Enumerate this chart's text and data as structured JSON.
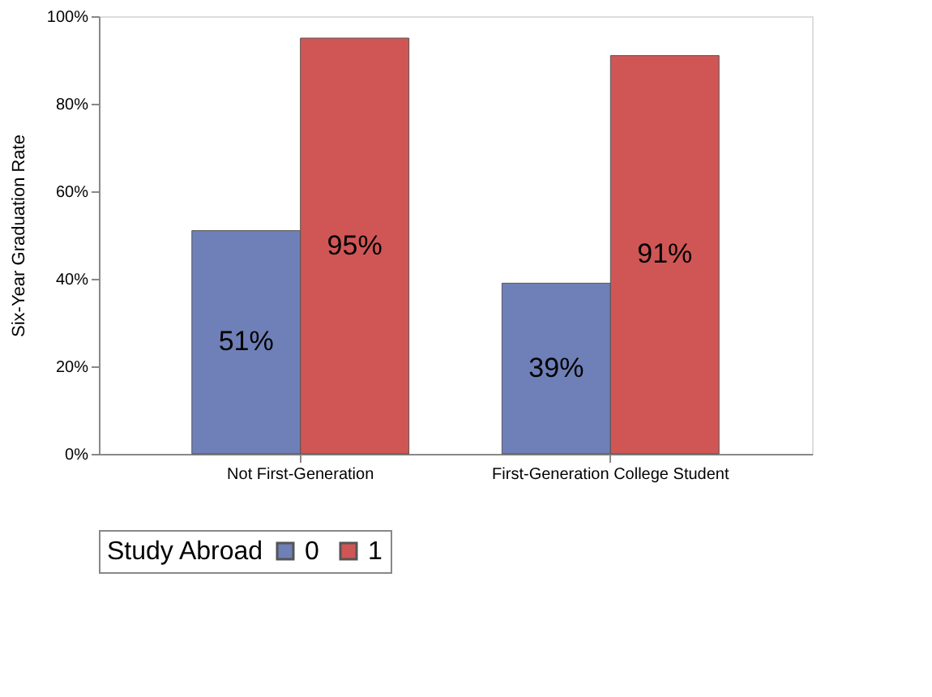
{
  "chart_data": {
    "type": "bar",
    "ylabel": "Six-Year Graduation Rate",
    "legend_title": "Study Abroad",
    "categories": [
      "Not First-Generation",
      "First-Generation College Student"
    ],
    "series": [
      {
        "name": "0",
        "color": "#6f7fb7",
        "values": [
          51,
          39
        ],
        "value_labels": [
          "51%",
          "39%"
        ]
      },
      {
        "name": "1",
        "color": "#d05656",
        "values": [
          95,
          91
        ],
        "value_labels": [
          "95%",
          "91%"
        ]
      }
    ],
    "ylim": [
      0,
      100
    ],
    "yticks": [
      {
        "value": 0,
        "label": "0%"
      },
      {
        "value": 20,
        "label": "20%"
      },
      {
        "value": 40,
        "label": "40%"
      },
      {
        "value": 60,
        "label": "60%"
      },
      {
        "value": 80,
        "label": "80%"
      },
      {
        "value": 100,
        "label": "100%"
      }
    ],
    "grid": false,
    "legend": "bottom"
  }
}
